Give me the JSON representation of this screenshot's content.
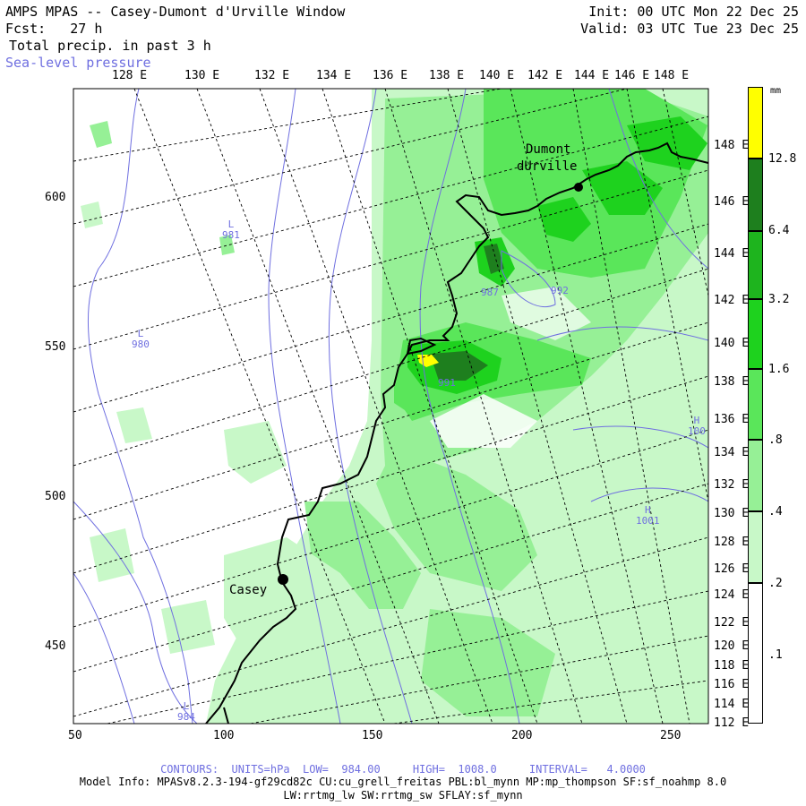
{
  "header": {
    "title": "AMPS MPAS -- Casey-Dumont d'Urville Window",
    "forecast": "Fcst:   27 h",
    "product": "Total precip. in past 3 h",
    "overlay": "Sea-level pressure",
    "init": "Init: 00 UTC Mon 22 Dec 25",
    "valid": "Valid: 03 UTC Tue 23 Dec 25"
  },
  "axes": {
    "top_longitudes": [
      "128 E",
      "130 E",
      "132 E",
      "134 E",
      "136 E",
      "138 E",
      "140 E",
      "142 E",
      "144 E",
      "146 E",
      "148 E"
    ],
    "left_ticks": [
      "600",
      "550",
      "500",
      "450"
    ],
    "bottom_ticks": [
      "50",
      "100",
      "150",
      "200",
      "250"
    ],
    "right_latitudes": [
      "148 E",
      "146 E",
      "144 E",
      "142 E",
      "140 E",
      "138 E",
      "136 E",
      "134 E",
      "132 E",
      "130 E",
      "128 E",
      "126 E",
      "124 E",
      "122 E",
      "120 E",
      "118 E",
      "116 E",
      "114 E",
      "112 E"
    ]
  },
  "stations": [
    {
      "name": "Dumont\ndUrville",
      "label1": "Dumont",
      "label2": "dUrville"
    },
    {
      "name": "Casey",
      "label1": "Casey"
    }
  ],
  "pressure_labels": [
    {
      "text": "L\n981",
      "kind": "L",
      "value": "981"
    },
    {
      "text": "L\n980",
      "kind": "L",
      "value": "980"
    },
    {
      "text": "L\n984",
      "kind": "L",
      "value": "984"
    },
    {
      "text": "H\n100",
      "kind": "H",
      "value": "100"
    },
    {
      "text": "H\n1001",
      "kind": "H",
      "value": "1001"
    },
    {
      "text": "987",
      "kind": "",
      "value": "987"
    },
    {
      "text": "992",
      "kind": "",
      "value": "992"
    },
    {
      "text": "991",
      "kind": "",
      "value": "991"
    }
  ],
  "colorbar": {
    "unit": "mm",
    "levels": [
      "12.8",
      "6.4",
      "3.2",
      "1.6",
      ".8",
      ".4",
      ".2",
      ".1"
    ],
    "colors": [
      "#ffff00",
      "#1e7f1e",
      "#1eb41e",
      "#1ed21e",
      "#5ae65a",
      "#96f096",
      "#c8f8c8",
      "#ffffff"
    ]
  },
  "footer": {
    "contours": "CONTOURS:  UNITS=hPa  LOW=  984.00     HIGH=  1008.0     INTERVAL=   4.0000",
    "model_info": "Model Info: MPASv8.2.3-194-gf29cd82c CU:cu_grell_freitas PBL:bl_mynn MP:mp_thompson SF:sf_noahmp 8.0",
    "physics": "LW:rrtmg_lw SW:rrtmg_sw SFLAY:sf_mynn"
  },
  "colors": {
    "accent_blue": "#6f6fe0",
    "precip_green": "#1ed21e",
    "yellow": "#ffff00"
  }
}
